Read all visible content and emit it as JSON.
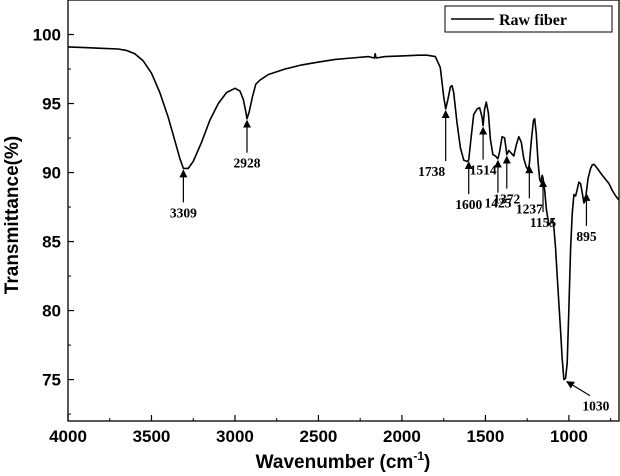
{
  "chart_data": {
    "type": "line",
    "xlabel_main": "Wavenumber (cm",
    "xlabel_sup": "-1",
    "xlabel_tail": ")",
    "ylabel": "Transmittance(%)",
    "xlim": [
      4000,
      700
    ],
    "ylim": [
      72,
      102.5
    ],
    "x_ticks": [
      4000,
      3500,
      3000,
      2500,
      2000,
      1500,
      1000
    ],
    "y_ticks": [
      75,
      80,
      85,
      90,
      95,
      100
    ],
    "legend_position": "top-right",
    "series": [
      {
        "name": "Raw fiber",
        "color": "#000000",
        "points": [
          [
            4000,
            99.1
          ],
          [
            3900,
            99.05
          ],
          [
            3800,
            99.0
          ],
          [
            3700,
            98.95
          ],
          [
            3650,
            98.85
          ],
          [
            3600,
            98.6
          ],
          [
            3550,
            98.1
          ],
          [
            3500,
            97.2
          ],
          [
            3450,
            95.8
          ],
          [
            3400,
            94.0
          ],
          [
            3360,
            92.3
          ],
          [
            3330,
            91.0
          ],
          [
            3309,
            90.3
          ],
          [
            3280,
            90.3
          ],
          [
            3250,
            90.8
          ],
          [
            3200,
            92.2
          ],
          [
            3150,
            93.8
          ],
          [
            3100,
            95.0
          ],
          [
            3050,
            95.8
          ],
          [
            3000,
            96.1
          ],
          [
            2970,
            95.9
          ],
          [
            2950,
            95.3
          ],
          [
            2935,
            94.4
          ],
          [
            2928,
            93.9
          ],
          [
            2915,
            94.4
          ],
          [
            2895,
            95.5
          ],
          [
            2875,
            96.4
          ],
          [
            2850,
            96.7
          ],
          [
            2800,
            97.1
          ],
          [
            2700,
            97.5
          ],
          [
            2600,
            97.8
          ],
          [
            2500,
            98.0
          ],
          [
            2400,
            98.2
          ],
          [
            2300,
            98.3
          ],
          [
            2200,
            98.4
          ],
          [
            2165,
            98.3
          ],
          [
            2160,
            98.6
          ],
          [
            2155,
            98.3
          ],
          [
            2100,
            98.4
          ],
          [
            2000,
            98.45
          ],
          [
            1900,
            98.5
          ],
          [
            1850,
            98.5
          ],
          [
            1800,
            98.4
          ],
          [
            1770,
            97.6
          ],
          [
            1750,
            95.5
          ],
          [
            1738,
            94.6
          ],
          [
            1725,
            95.3
          ],
          [
            1710,
            96.2
          ],
          [
            1700,
            96.3
          ],
          [
            1690,
            95.8
          ],
          [
            1670,
            93.6
          ],
          [
            1650,
            91.8
          ],
          [
            1630,
            90.9
          ],
          [
            1610,
            90.8
          ],
          [
            1600,
            90.9
          ],
          [
            1585,
            92.6
          ],
          [
            1570,
            94.2
          ],
          [
            1550,
            94.6
          ],
          [
            1535,
            94.7
          ],
          [
            1520,
            94.0
          ],
          [
            1514,
            93.4
          ],
          [
            1505,
            94.6
          ],
          [
            1495,
            95.1
          ],
          [
            1482,
            94.3
          ],
          [
            1470,
            92.4
          ],
          [
            1455,
            91.3
          ],
          [
            1440,
            91.2
          ],
          [
            1425,
            91.0
          ],
          [
            1415,
            91.5
          ],
          [
            1400,
            92.6
          ],
          [
            1385,
            92.5
          ],
          [
            1375,
            91.6
          ],
          [
            1372,
            91.3
          ],
          [
            1360,
            91.6
          ],
          [
            1345,
            91.4
          ],
          [
            1330,
            91.2
          ],
          [
            1315,
            92.0
          ],
          [
            1300,
            92.6
          ],
          [
            1285,
            92.2
          ],
          [
            1270,
            91.0
          ],
          [
            1255,
            90.4
          ],
          [
            1245,
            90.2
          ],
          [
            1237,
            90.6
          ],
          [
            1225,
            92.3
          ],
          [
            1212,
            93.8
          ],
          [
            1205,
            93.9
          ],
          [
            1195,
            92.8
          ],
          [
            1185,
            90.8
          ],
          [
            1175,
            89.5
          ],
          [
            1168,
            89.3
          ],
          [
            1160,
            89.8
          ],
          [
            1155,
            89.6
          ],
          [
            1145,
            88.7
          ],
          [
            1135,
            87.3
          ],
          [
            1120,
            86.2
          ],
          [
            1105,
            86.4
          ],
          [
            1098,
            86.6
          ],
          [
            1090,
            86.0
          ],
          [
            1080,
            84.5
          ],
          [
            1070,
            82.5
          ],
          [
            1060,
            80.5
          ],
          [
            1050,
            78.5
          ],
          [
            1040,
            76.5
          ],
          [
            1030,
            75.0
          ],
          [
            1020,
            75.1
          ],
          [
            1010,
            76.2
          ],
          [
            1000,
            80.2
          ],
          [
            990,
            84.5
          ],
          [
            980,
            87.0
          ],
          [
            970,
            88.4
          ],
          [
            960,
            88.3
          ],
          [
            950,
            88.8
          ],
          [
            940,
            89.3
          ],
          [
            930,
            89.2
          ],
          [
            920,
            88.5
          ],
          [
            910,
            87.8
          ],
          [
            900,
            88.0
          ],
          [
            895,
            88.6
          ],
          [
            885,
            89.6
          ],
          [
            870,
            90.3
          ],
          [
            860,
            90.55
          ],
          [
            850,
            90.6
          ],
          [
            830,
            90.3
          ],
          [
            800,
            89.8
          ],
          [
            780,
            89.5
          ],
          [
            760,
            89.2
          ],
          [
            740,
            88.7
          ],
          [
            720,
            88.3
          ],
          [
            700,
            88.0
          ]
        ]
      }
    ],
    "annotations": [
      {
        "label": "3309",
        "x": 3309,
        "y": 90.3,
        "dir": "up"
      },
      {
        "label": "2928",
        "x": 2928,
        "y": 93.9,
        "dir": "up"
      },
      {
        "label": "1738",
        "x": 1738,
        "y": 94.6,
        "dir": "down"
      },
      {
        "label": "1600",
        "x": 1600,
        "y": 90.9,
        "dir": "up"
      },
      {
        "label": "1514",
        "x": 1514,
        "y": 93.4,
        "dir": "up"
      },
      {
        "label": "1425",
        "x": 1425,
        "y": 91.0,
        "dir": "up"
      },
      {
        "label": "1372",
        "x": 1372,
        "y": 91.3,
        "dir": "up"
      },
      {
        "label": "1237",
        "x": 1237,
        "y": 90.6,
        "dir": "up"
      },
      {
        "label": "1155",
        "x": 1155,
        "y": 89.6,
        "dir": "up"
      },
      {
        "label": "1030",
        "x": 1030,
        "y": 75.0,
        "dir": "diag"
      },
      {
        "label": "895",
        "x": 895,
        "y": 88.6,
        "dir": "up"
      }
    ]
  }
}
